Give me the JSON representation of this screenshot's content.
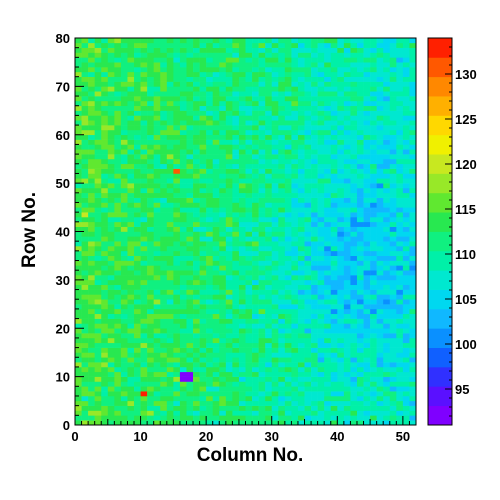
{
  "chart_data": {
    "type": "heatmap",
    "title": "",
    "xlabel": "Column No.",
    "ylabel": "Row No.",
    "xlim": [
      0,
      52
    ],
    "ylim": [
      0,
      80
    ],
    "xticks": [
      0,
      10,
      20,
      30,
      40,
      50
    ],
    "yticks": [
      0,
      10,
      20,
      30,
      40,
      50,
      60,
      70,
      80
    ],
    "colorbar": {
      "range": [
        91,
        134
      ],
      "ticks": [
        95,
        100,
        105,
        110,
        115,
        120,
        125,
        130
      ],
      "palette": [
        "#7f00ff",
        "#5a10ff",
        "#3030ff",
        "#1060ff",
        "#0a90ff",
        "#10b8ff",
        "#00d8f0",
        "#00e8d0",
        "#00f0a8",
        "#10f080",
        "#28e850",
        "#60e830",
        "#98e828",
        "#c8e820",
        "#f0f000",
        "#ffd800",
        "#ffb000",
        "#ff8800",
        "#ff5800",
        "#ff2000"
      ]
    },
    "cells": {
      "columns": 52,
      "rows": 80,
      "row_order": "bottom-to-top",
      "model": "mean 114 on the left, falling to about 107 on the right with a low (≈103) region around columns 33–50, rows 15–55; random cell-to-cell noise of roughly ±3",
      "outliers": [
        {
          "column": 10,
          "row": 6,
          "value": 134
        },
        {
          "column": 15,
          "row": 52,
          "value": 131
        },
        {
          "column": 16,
          "row": 9,
          "value": 92
        },
        {
          "column": 17,
          "row": 9,
          "value": 92
        },
        {
          "column": 16,
          "row": 10,
          "value": 92
        },
        {
          "column": 17,
          "row": 10,
          "value": 92
        }
      ]
    }
  }
}
